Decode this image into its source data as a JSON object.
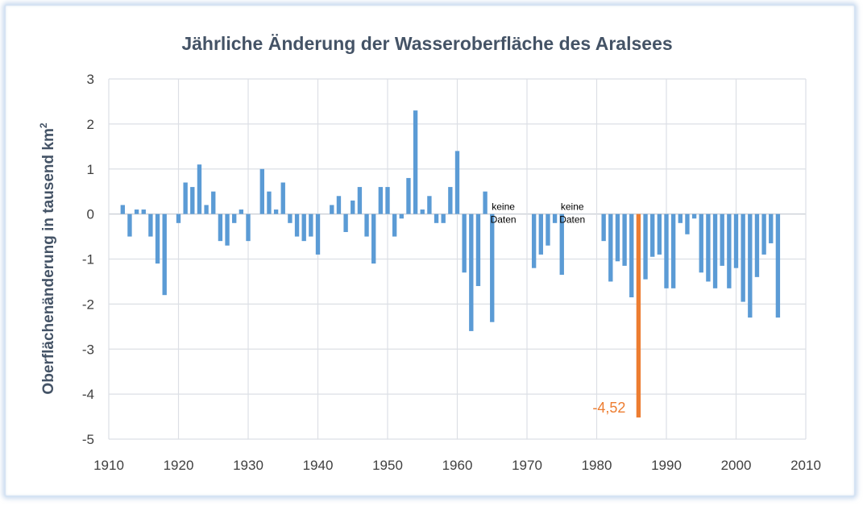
{
  "chart_data": {
    "type": "bar",
    "title": "Jährliche Änderung der Wasseroberfläche des Aralsees",
    "ylabel": "Oberflächenänderung in tausend km",
    "ylabel_superscript": "2",
    "xlabel": "",
    "xlim": [
      1910,
      2010
    ],
    "ylim": [
      -5,
      3
    ],
    "x_ticks": [
      1910,
      1920,
      1930,
      1940,
      1950,
      1960,
      1970,
      1980,
      1990,
      2000,
      2010
    ],
    "y_ticks": [
      3,
      2,
      1,
      0,
      -1,
      -2,
      -3,
      -4,
      -5
    ],
    "y_tick_labels": [
      "3",
      "2",
      "1",
      "0",
      "-1",
      "-2",
      "-3",
      "-4",
      "-5"
    ],
    "x_tick_labels": [
      "1910",
      "1920",
      "1930",
      "1940",
      "1950",
      "1960",
      "1970",
      "1980",
      "1990",
      "2000",
      "2010"
    ],
    "grid": true,
    "bar_color": "#5b9bd5",
    "highlight_color": "#ed7d31",
    "years": [
      1912,
      1913,
      1914,
      1915,
      1916,
      1917,
      1918,
      1920,
      1921,
      1922,
      1923,
      1924,
      1925,
      1926,
      1927,
      1928,
      1929,
      1930,
      1932,
      1933,
      1934,
      1935,
      1936,
      1937,
      1938,
      1939,
      1940,
      1942,
      1943,
      1944,
      1945,
      1946,
      1947,
      1948,
      1949,
      1950,
      1951,
      1952,
      1953,
      1954,
      1955,
      1956,
      1957,
      1958,
      1959,
      1960,
      1961,
      1962,
      1963,
      1964,
      1965,
      1971,
      1972,
      1973,
      1974,
      1975,
      1981,
      1982,
      1983,
      1984,
      1985,
      1986,
      1987,
      1988,
      1989,
      1990,
      1991,
      1992,
      1993,
      1994,
      1995,
      1996,
      1997,
      1998,
      1999,
      2000,
      2001,
      2002,
      2003,
      2004,
      2005,
      2006
    ],
    "values": [
      0.2,
      -0.5,
      0.1,
      0.1,
      -0.5,
      -1.1,
      -1.8,
      -0.2,
      0.7,
      0.6,
      1.1,
      0.2,
      0.5,
      -0.6,
      -0.7,
      -0.2,
      0.1,
      -0.6,
      1.0,
      0.5,
      0.1,
      0.7,
      -0.2,
      -0.5,
      -0.6,
      -0.5,
      -0.9,
      0.2,
      0.4,
      -0.4,
      0.3,
      0.6,
      -0.5,
      -1.1,
      0.6,
      0.6,
      -0.5,
      -0.1,
      0.8,
      2.3,
      0.1,
      0.4,
      -0.2,
      -0.2,
      0.6,
      1.4,
      -1.3,
      -2.6,
      -1.6,
      0.5,
      -2.4,
      -1.2,
      -0.9,
      -0.7,
      -0.2,
      -1.35,
      -0.6,
      -1.5,
      -1.05,
      -1.15,
      -1.85,
      -4.52,
      -1.45,
      -0.95,
      -0.9,
      -1.65,
      -1.65,
      -0.2,
      -0.45,
      -0.1,
      -1.3,
      -1.5,
      -1.65,
      -1.15,
      -1.65,
      -1.2,
      -1.95,
      -2.3,
      -1.4,
      -0.9,
      -0.65,
      -2.3
    ],
    "highlight_year": 1986,
    "highlight_label": "-4,52",
    "annotations": [
      {
        "lines": [
          "keine",
          "Daten"
        ],
        "year": 1966.6,
        "value": 0
      },
      {
        "lines": [
          "keine",
          "Daten"
        ],
        "year": 1976.5,
        "value": 0
      }
    ]
  }
}
